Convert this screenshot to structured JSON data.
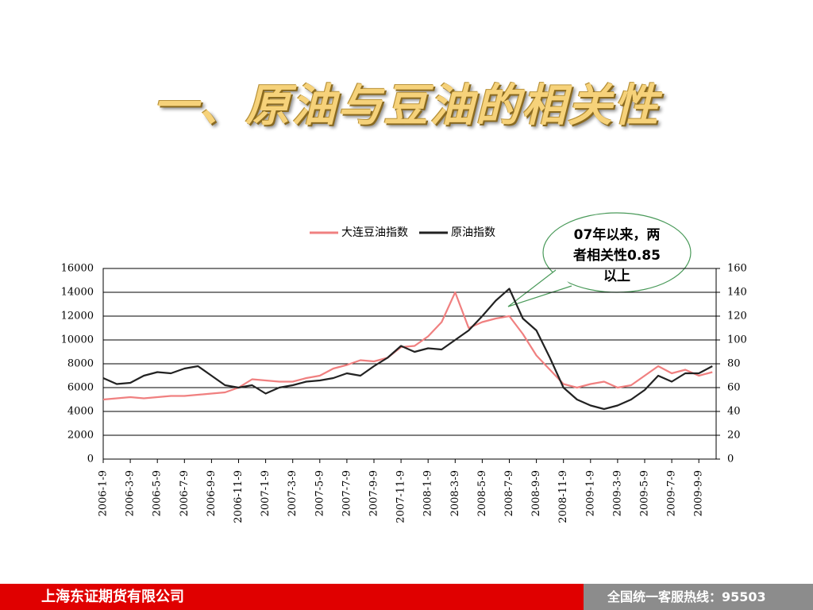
{
  "page": {
    "title": "一、原油与豆油的相关性",
    "callout": "07年以来，两者相关性0.85以上",
    "footer_left": "上海东证期货有限公司",
    "footer_right": "全国统一客服热线：95503"
  },
  "chart_data": {
    "type": "line",
    "categories": [
      "2006-1-9",
      null,
      "2006-3-9",
      null,
      "2006-5-9",
      null,
      "2006-7-9",
      null,
      "2006-9-9",
      null,
      "2006-11-9",
      null,
      "2007-1-9",
      null,
      "2007-3-9",
      null,
      "2007-5-9",
      null,
      "2007-7-9",
      null,
      "2007-9-9",
      null,
      "2007-11-9",
      null,
      "2008-1-9",
      null,
      "2008-3-9",
      null,
      "2008-5-9",
      null,
      "2008-7-9",
      null,
      "2008-9-9",
      null,
      "2008-11-9",
      null,
      "2009-1-9",
      null,
      "2009-3-9",
      null,
      "2009-5-9",
      null,
      "2009-7-9",
      null,
      "2009-9-9",
      null
    ],
    "series": [
      {
        "name": "大连豆油指数",
        "color": "#f08080",
        "values": [
          5000,
          5100,
          5200,
          5100,
          5200,
          5300,
          5300,
          5400,
          5500,
          5600,
          6000,
          6700,
          6600,
          6500,
          6500,
          6800,
          7000,
          7600,
          7900,
          8300,
          8200,
          8500,
          9400,
          9500,
          10300,
          11500,
          14000,
          11000,
          11500,
          11800,
          12000,
          10500,
          8700,
          7500,
          6300,
          6000,
          6300,
          6500,
          6000,
          6200,
          7000,
          7800,
          7200,
          7500,
          7000,
          7300
        ]
      },
      {
        "name": "原油指数",
        "color": "#222222",
        "axis": "y2",
        "values": [
          68,
          63,
          64,
          70,
          73,
          72,
          76,
          78,
          70,
          62,
          60,
          62,
          55,
          60,
          62,
          65,
          66,
          68,
          72,
          70,
          78,
          85,
          95,
          90,
          93,
          92,
          100,
          108,
          120,
          133,
          143,
          118,
          108,
          85,
          60,
          50,
          45,
          42,
          45,
          50,
          58,
          70,
          65,
          72,
          72,
          78
        ]
      }
    ],
    "ylim": [
      0,
      16000
    ],
    "yticks": [
      0,
      2000,
      4000,
      6000,
      8000,
      10000,
      12000,
      14000,
      16000
    ],
    "y2lim": [
      0,
      160
    ],
    "y2ticks": [
      0,
      20,
      40,
      60,
      80,
      100,
      120,
      140,
      160
    ],
    "grid": true,
    "legend": "top"
  }
}
